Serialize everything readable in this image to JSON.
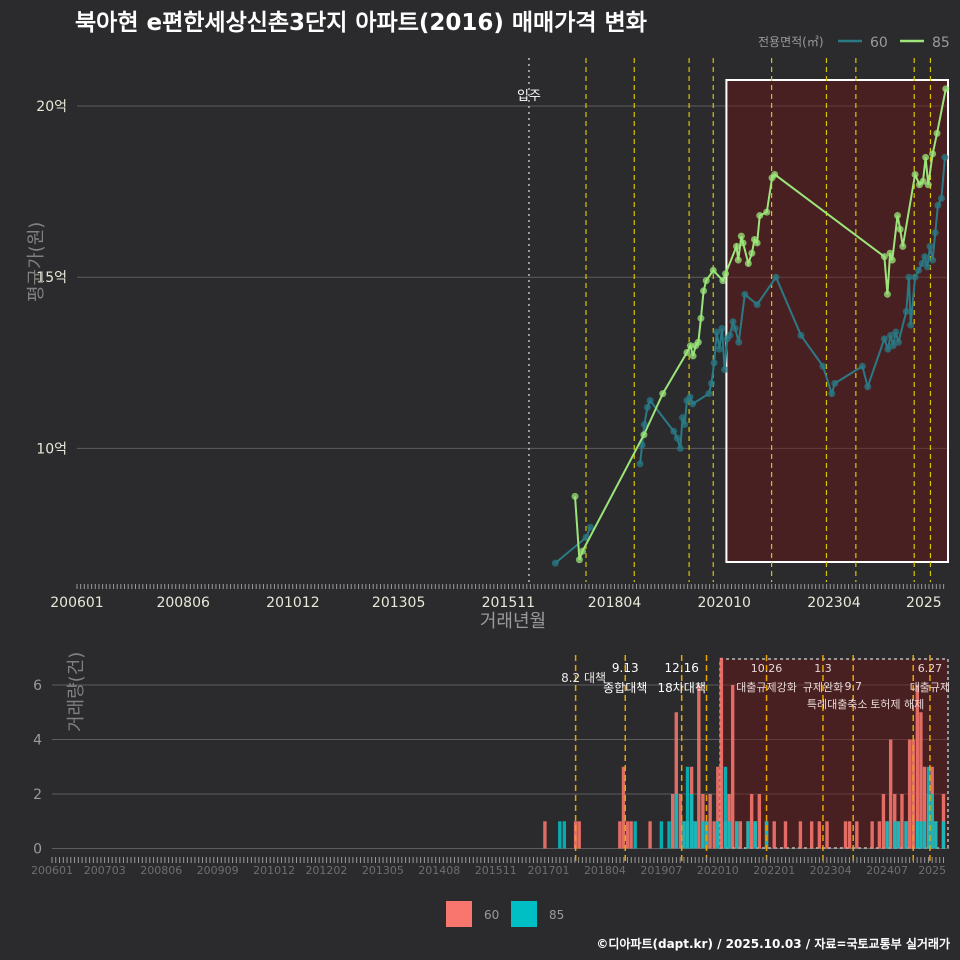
{
  "chart_data": [
    {
      "type": "line",
      "title": "북아현 e편한세상신촌3단지 아파트(2016) 매매가격 변화",
      "xlabel": "거래년월",
      "ylabel": "평균가(원)",
      "x_tick_labels": [
        "200601",
        "200806",
        "201012",
        "201305",
        "201511",
        "201804",
        "202010",
        "202304",
        "2025"
      ],
      "y_tick_labels": [
        "10억",
        "15억",
        "20억"
      ],
      "y_ticks": [
        10,
        15,
        20
      ],
      "ylim": [
        6.1,
        21.4
      ],
      "xlim": [
        2006.0,
        2025.85
      ],
      "legend_title": "전용면적(㎡)",
      "legend_position": "top-right",
      "series": [
        {
          "name": "60",
          "color": "#2a7a86",
          "points": [
            [
              2016.9,
              6.65
            ],
            [
              2017.6,
              7.4
            ],
            [
              2017.7,
              7.7
            ],
            [
              2018.83,
              9.55
            ],
            [
              2018.88,
              10.1
            ],
            [
              2018.93,
              10.7
            ],
            [
              2019.0,
              11.2
            ],
            [
              2019.06,
              11.4
            ],
            [
              2019.6,
              10.5
            ],
            [
              2019.68,
              10.3
            ],
            [
              2019.75,
              10.0
            ],
            [
              2019.8,
              10.9
            ],
            [
              2019.85,
              10.7
            ],
            [
              2019.9,
              11.4
            ],
            [
              2019.97,
              11.5
            ],
            [
              2020.03,
              11.3
            ],
            [
              2020.4,
              11.6
            ],
            [
              2020.46,
              11.9
            ],
            [
              2020.52,
              12.5
            ],
            [
              2020.58,
              13.4
            ],
            [
              2020.64,
              12.9
            ],
            [
              2020.7,
              13.5
            ],
            [
              2020.76,
              12.3
            ],
            [
              2020.82,
              13.2
            ],
            [
              2020.88,
              13.3
            ],
            [
              2020.95,
              13.7
            ],
            [
              2021.0,
              13.5
            ],
            [
              2021.08,
              13.1
            ],
            [
              2021.22,
              14.5
            ],
            [
              2021.5,
              14.2
            ],
            [
              2021.93,
              15.0
            ],
            [
              2022.5,
              13.3
            ],
            [
              2023.0,
              12.4
            ],
            [
              2023.2,
              11.6
            ],
            [
              2023.27,
              11.9
            ],
            [
              2023.9,
              12.4
            ],
            [
              2024.02,
              11.8
            ],
            [
              2024.4,
              13.2
            ],
            [
              2024.48,
              12.9
            ],
            [
              2024.54,
              13.3
            ],
            [
              2024.6,
              13.0
            ],
            [
              2024.66,
              13.4
            ],
            [
              2024.72,
              13.1
            ],
            [
              2024.9,
              14.0
            ],
            [
              2024.96,
              15.0
            ],
            [
              2025.0,
              13.6
            ],
            [
              2025.1,
              15.0
            ],
            [
              2025.18,
              15.2
            ],
            [
              2025.26,
              15.4
            ],
            [
              2025.32,
              15.6
            ],
            [
              2025.38,
              15.3
            ],
            [
              2025.44,
              15.9
            ],
            [
              2025.5,
              15.5
            ],
            [
              2025.56,
              16.3
            ],
            [
              2025.62,
              17.1
            ],
            [
              2025.7,
              17.3
            ],
            [
              2025.78,
              18.5
            ]
          ]
        },
        {
          "name": "85",
          "color": "#9be57a",
          "points": [
            [
              2017.35,
              8.6
            ],
            [
              2017.45,
              6.75
            ],
            [
              2017.52,
              7.0
            ],
            [
              2018.92,
              10.4
            ],
            [
              2019.35,
              11.6
            ],
            [
              2019.9,
              12.8
            ],
            [
              2019.98,
              13.0
            ],
            [
              2020.04,
              12.7
            ],
            [
              2020.1,
              13.0
            ],
            [
              2020.16,
              13.1
            ],
            [
              2020.22,
              13.8
            ],
            [
              2020.28,
              14.6
            ],
            [
              2020.34,
              14.9
            ],
            [
              2020.5,
              15.2
            ],
            [
              2020.72,
              14.9
            ],
            [
              2020.78,
              15.1
            ],
            [
              2021.03,
              15.9
            ],
            [
              2021.07,
              15.5
            ],
            [
              2021.14,
              16.2
            ],
            [
              2021.18,
              16.0
            ],
            [
              2021.3,
              15.4
            ],
            [
              2021.38,
              15.7
            ],
            [
              2021.44,
              16.1
            ],
            [
              2021.5,
              16.0
            ],
            [
              2021.56,
              16.8
            ],
            [
              2021.72,
              16.9
            ],
            [
              2021.84,
              17.9
            ],
            [
              2021.9,
              18.0
            ],
            [
              2024.4,
              15.6
            ],
            [
              2024.47,
              14.5
            ],
            [
              2024.53,
              15.7
            ],
            [
              2024.58,
              15.5
            ],
            [
              2024.7,
              16.8
            ],
            [
              2024.76,
              16.4
            ],
            [
              2024.82,
              15.9
            ],
            [
              2025.1,
              18.0
            ],
            [
              2025.2,
              17.7
            ],
            [
              2025.28,
              17.8
            ],
            [
              2025.34,
              18.5
            ],
            [
              2025.4,
              17.7
            ],
            [
              2025.5,
              18.6
            ],
            [
              2025.6,
              19.2
            ],
            [
              2025.8,
              20.5
            ]
          ]
        }
      ],
      "annotations": [
        {
          "x": 2016.3,
          "label": "입주",
          "style": "dotted"
        }
      ],
      "policy_lines": [
        2017.6,
        2018.7,
        2019.95,
        2020.5,
        2021.83,
        2023.08,
        2023.75,
        2025.08,
        2025.45
      ],
      "highlight_range": [
        2020.8,
        2025.85
      ]
    },
    {
      "type": "bar",
      "xlabel": "",
      "ylabel": "거래량(건)",
      "x_tick_labels": [
        "200601",
        "200703",
        "200806",
        "200909",
        "201012",
        "201202",
        "201305",
        "201408",
        "201511",
        "201701",
        "201804",
        "201907",
        "202010",
        "202201",
        "202304",
        "202407",
        "2025"
      ],
      "y_tick_labels": [
        "0",
        "2",
        "4",
        "6"
      ],
      "y_ticks": [
        0,
        2,
        4,
        6
      ],
      "ylim": [
        -0.2,
        7.1
      ],
      "xlim": [
        2006.0,
        2025.85
      ],
      "legend_position": "bottom",
      "legend_labels": [
        "60",
        "85"
      ],
      "series": [
        {
          "name": "60",
          "color": "#f8766d",
          "bars": [
            [
              2016.92,
              1
            ],
            [
              2017.6,
              1
            ],
            [
              2017.68,
              1
            ],
            [
              2018.58,
              1
            ],
            [
              2018.66,
              3
            ],
            [
              2018.75,
              1
            ],
            [
              2018.83,
              1
            ],
            [
              2019.25,
              1
            ],
            [
              2019.75,
              2
            ],
            [
              2019.83,
              5
            ],
            [
              2019.92,
              2
            ],
            [
              2020.0,
              1
            ],
            [
              2020.08,
              1
            ],
            [
              2020.17,
              3
            ],
            [
              2020.25,
              1
            ],
            [
              2020.33,
              6
            ],
            [
              2020.42,
              2
            ],
            [
              2020.5,
              1
            ],
            [
              2020.58,
              2
            ],
            [
              2020.67,
              1
            ],
            [
              2020.75,
              3
            ],
            [
              2020.83,
              7
            ],
            [
              2020.92,
              1
            ],
            [
              2021.0,
              2
            ],
            [
              2021.08,
              6
            ],
            [
              2021.17,
              1
            ],
            [
              2021.25,
              1
            ],
            [
              2021.42,
              1
            ],
            [
              2021.5,
              2
            ],
            [
              2021.58,
              1
            ],
            [
              2021.67,
              2
            ],
            [
              2021.83,
              1
            ],
            [
              2022.0,
              1
            ],
            [
              2022.25,
              1
            ],
            [
              2022.58,
              1
            ],
            [
              2022.83,
              1
            ],
            [
              2023.0,
              1
            ],
            [
              2023.17,
              1
            ],
            [
              2023.58,
              1
            ],
            [
              2023.67,
              1
            ],
            [
              2023.83,
              1
            ],
            [
              2024.17,
              1
            ],
            [
              2024.33,
              1
            ],
            [
              2024.42,
              2
            ],
            [
              2024.5,
              1
            ],
            [
              2024.58,
              4
            ],
            [
              2024.67,
              2
            ],
            [
              2024.75,
              1
            ],
            [
              2024.83,
              2
            ],
            [
              2024.92,
              1
            ],
            [
              2025.0,
              4
            ],
            [
              2025.08,
              4
            ],
            [
              2025.17,
              6
            ],
            [
              2025.25,
              5
            ],
            [
              2025.33,
              3
            ],
            [
              2025.42,
              2
            ],
            [
              2025.5,
              3
            ],
            [
              2025.58,
              1
            ],
            [
              2025.75,
              2
            ]
          ]
        },
        {
          "name": "85",
          "color": "#00bfc4",
          "bars": [
            [
              2017.25,
              1
            ],
            [
              2017.35,
              1
            ],
            [
              2018.92,
              1
            ],
            [
              2019.5,
              1
            ],
            [
              2019.67,
              1
            ],
            [
              2019.83,
              2
            ],
            [
              2020.0,
              1
            ],
            [
              2020.08,
              3
            ],
            [
              2020.17,
              2
            ],
            [
              2020.25,
              1
            ],
            [
              2020.42,
              1
            ],
            [
              2020.5,
              1
            ],
            [
              2020.75,
              1
            ],
            [
              2020.92,
              3
            ],
            [
              2021.0,
              1
            ],
            [
              2021.17,
              1
            ],
            [
              2021.42,
              1
            ],
            [
              2021.58,
              1
            ],
            [
              2021.83,
              1
            ],
            [
              2024.5,
              1
            ],
            [
              2024.67,
              1
            ],
            [
              2024.75,
              1
            ],
            [
              2024.92,
              1
            ],
            [
              2025.17,
              1
            ],
            [
              2025.25,
              1
            ],
            [
              2025.33,
              1
            ],
            [
              2025.42,
              3
            ],
            [
              2025.5,
              2
            ],
            [
              2025.58,
              1
            ],
            [
              2025.75,
              1
            ]
          ]
        }
      ],
      "policies": [
        {
          "x": 2017.6,
          "date": "8.2",
          "label": "대책",
          "row": 0
        },
        {
          "x": 2018.7,
          "date": "9.13",
          "label": "종합대책",
          "row": 0
        },
        {
          "x": 2019.95,
          "date": "12.16",
          "label": "18차대책",
          "row": 0
        },
        {
          "x": 2020.5,
          "date": "",
          "label": "",
          "row": 0
        },
        {
          "x": 2021.83,
          "date": "10.26",
          "label": "대출규제강화",
          "row": 1
        },
        {
          "x": 2023.08,
          "date": "1.3",
          "label": "규제완화",
          "row": 1
        },
        {
          "x": 2023.75,
          "date": "9.7",
          "label": "특례대출축소",
          "row": 2
        },
        {
          "x": 2025.08,
          "date": "",
          "label": "토허제 해제",
          "row": 2
        },
        {
          "x": 2025.45,
          "date": "6.27",
          "label": "대출규제",
          "row": 1
        }
      ],
      "highlight_range": [
        2020.8,
        2025.85
      ]
    }
  ],
  "footer": "©디아파트(dapt.kr) / 2025.10.03 / 자료=국토교통부 실거래가"
}
